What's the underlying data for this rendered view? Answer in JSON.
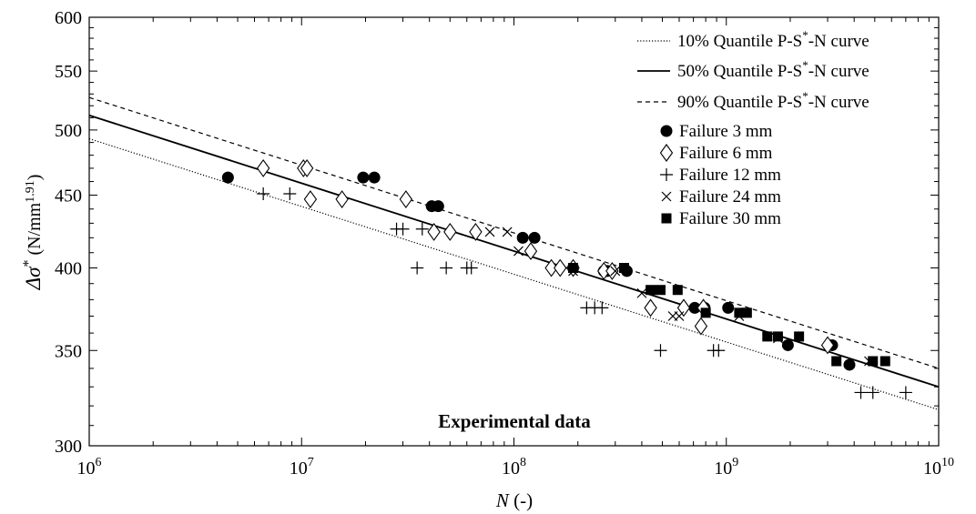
{
  "chart_data": {
    "type": "scatter",
    "x_scale": "log",
    "y_scale": "log",
    "xlim": [
      1000000,
      10000000000
    ],
    "ylim": [
      300,
      600
    ],
    "x_ticks": [
      {
        "value": 1000000,
        "base": "10",
        "exp": "6"
      },
      {
        "value": 10000000,
        "base": "10",
        "exp": "7"
      },
      {
        "value": 100000000,
        "base": "10",
        "exp": "8"
      },
      {
        "value": 1000000000,
        "base": "10",
        "exp": "9"
      },
      {
        "value": 10000000000,
        "base": "10",
        "exp": "10"
      }
    ],
    "y_ticks": [
      {
        "value": 300,
        "label": "300"
      },
      {
        "value": 350,
        "label": "350"
      },
      {
        "value": 400,
        "label": "400"
      },
      {
        "value": 450,
        "label": "450"
      },
      {
        "value": 500,
        "label": "500"
      },
      {
        "value": 550,
        "label": "550"
      },
      {
        "value": 600,
        "label": "600"
      }
    ],
    "xlabel": {
      "main": "N",
      "rest": " (-)"
    },
    "ylabel": {
      "pre": "Δσ",
      "sup1": "*",
      "mid": " (N/mm",
      "sup2": "1.91",
      "post": ")"
    },
    "annotation": "Experimental data",
    "legend_position": "top-right",
    "grid": false,
    "lines": [
      {
        "name": "10% Quantile P-S*-N curve",
        "style": "dotted",
        "points": [
          [
            1000000,
            493
          ],
          [
            10000000000,
            318
          ]
        ]
      },
      {
        "name": "50% Quantile P-S*-N curve",
        "style": "solid",
        "points": [
          [
            1000000,
            512
          ],
          [
            10000000000,
            330
          ]
        ]
      },
      {
        "name": "90% Quantile P-S*-N curve",
        "style": "dashed",
        "points": [
          [
            1000000,
            527
          ],
          [
            10000000000,
            340
          ]
        ]
      }
    ],
    "series": [
      {
        "name": "Failure 3 mm",
        "marker": "circle",
        "points": [
          [
            4500000,
            463
          ],
          [
            19500000,
            463
          ],
          [
            22000000,
            463
          ],
          [
            41000000,
            442
          ],
          [
            44000000,
            442
          ],
          [
            110000000,
            420
          ],
          [
            125000000,
            420
          ],
          [
            190000000,
            400
          ],
          [
            265000000,
            398
          ],
          [
            275000000,
            398
          ],
          [
            340000000,
            398
          ],
          [
            710000000,
            375
          ],
          [
            790000000,
            375
          ],
          [
            1020000000,
            375
          ],
          [
            1950000000,
            353
          ],
          [
            3150000000,
            353
          ],
          [
            3800000000,
            342
          ]
        ]
      },
      {
        "name": "Failure 6 mm",
        "marker": "diamond",
        "points": [
          [
            6600000,
            470
          ],
          [
            10200000,
            470
          ],
          [
            10600000,
            470
          ],
          [
            11000000,
            447
          ],
          [
            15500000,
            447
          ],
          [
            31000000,
            447
          ],
          [
            42000000,
            424
          ],
          [
            50000000,
            424
          ],
          [
            66000000,
            424
          ],
          [
            120000000,
            411
          ],
          [
            150000000,
            400
          ],
          [
            165000000,
            400
          ],
          [
            190000000,
            400
          ],
          [
            265000000,
            398
          ],
          [
            290000000,
            398
          ],
          [
            440000000,
            375
          ],
          [
            630000000,
            375
          ],
          [
            760000000,
            364
          ],
          [
            780000000,
            375
          ],
          [
            3000000000,
            353
          ]
        ]
      },
      {
        "name": "Failure 12 mm",
        "marker": "plus",
        "points": [
          [
            6600000,
            451
          ],
          [
            8800000,
            451
          ],
          [
            28000000,
            426
          ],
          [
            30000000,
            426
          ],
          [
            37000000,
            426
          ],
          [
            35000000,
            400
          ],
          [
            48000000,
            400
          ],
          [
            60000000,
            400
          ],
          [
            63000000,
            400
          ],
          [
            220000000,
            375
          ],
          [
            240000000,
            375
          ],
          [
            260000000,
            375
          ],
          [
            490000000,
            350
          ],
          [
            870000000,
            350
          ],
          [
            920000000,
            350
          ],
          [
            4300000000,
            327
          ],
          [
            4900000000,
            327
          ],
          [
            7000000000,
            327
          ]
        ]
      },
      {
        "name": "Failure 24 mm",
        "marker": "x",
        "points": [
          [
            77000000,
            424
          ],
          [
            93000000,
            424
          ],
          [
            105000000,
            411
          ],
          [
            190000000,
            398
          ],
          [
            300000000,
            398
          ],
          [
            400000000,
            384
          ],
          [
            560000000,
            370
          ],
          [
            600000000,
            370
          ],
          [
            1150000000,
            370
          ],
          [
            1750000000,
            357
          ],
          [
            4700000000,
            344
          ]
        ]
      },
      {
        "name": "Failure 30 mm",
        "marker": "square",
        "points": [
          [
            190000000,
            400
          ],
          [
            330000000,
            400
          ],
          [
            440000000,
            386
          ],
          [
            490000000,
            386
          ],
          [
            590000000,
            386
          ],
          [
            800000000,
            372
          ],
          [
            1150000000,
            372
          ],
          [
            1250000000,
            372
          ],
          [
            1560000000,
            358
          ],
          [
            1750000000,
            358
          ],
          [
            2200000000,
            358
          ],
          [
            3300000000,
            344
          ],
          [
            4900000000,
            344
          ],
          [
            5600000000,
            344
          ]
        ]
      }
    ]
  }
}
